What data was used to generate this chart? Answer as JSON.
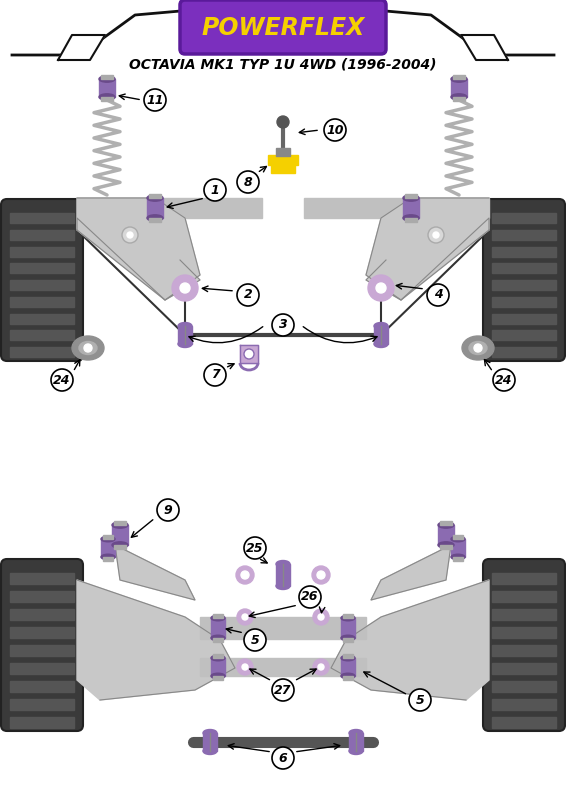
{
  "title": "OCTAVIA MK1 TYP 1U 4WD (1996-2004)",
  "bg_color": "#ffffff",
  "purple": "#8B6BB1",
  "purple_light": "#C9A8D4",
  "purple_mid": "#9B72B0",
  "yellow": "#F5D000",
  "gray_arm": "#C0C0C0",
  "gray_spring": "#A0A0A0",
  "gray_disk": "#909090",
  "tire_dark": "#3A3A3A",
  "tire_tread": "#555555"
}
